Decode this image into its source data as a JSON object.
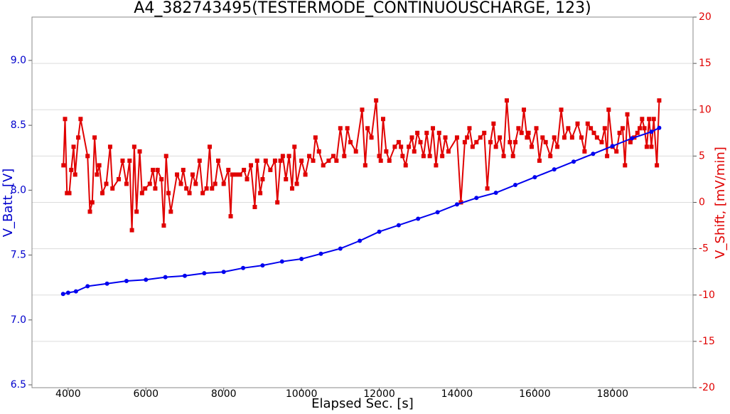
{
  "chart_data": {
    "type": "line",
    "title": "A4_382743495(TESTERMODE_CONTINUOUSCHARGE, 123)",
    "x_label": "Elapsed Sec. [s]",
    "y_label": "V_Batt. [V]",
    "y2_label": "V_Shift, [mV/min]",
    "xlim": [
      3070,
      20070
    ],
    "xticks": [
      4000,
      6000,
      8000,
      10000,
      12000,
      14000,
      16000,
      18000
    ],
    "ylim": [
      6.478,
      9.334
    ],
    "yticks": [
      6.5,
      {
        "value": 7,
        "label": "7.0"
      },
      7.5,
      {
        "value": 8,
        "label": "8.0"
      },
      8.5,
      {
        "value": 9,
        "label": "9.0"
      }
    ],
    "y_color": "#0000cc",
    "y2lim": [
      -20,
      20
    ],
    "y2ticks": [
      -20,
      -15,
      -10,
      -5,
      0,
      5,
      10,
      15,
      20
    ],
    "y2_color": "#e00000",
    "grid": "y2",
    "series": [
      {
        "name": "V_Batt",
        "color": "#0000ee",
        "marker": "circle",
        "x": [
          3870,
          4000,
          4200,
          4500,
          5000,
          5500,
          6000,
          6500,
          7000,
          7500,
          8000,
          8500,
          9000,
          9500,
          10000,
          10500,
          11000,
          11500,
          12000,
          12500,
          13000,
          13500,
          14000,
          14500,
          15000,
          15500,
          16000,
          16500,
          17000,
          17500,
          18000,
          18500,
          19000,
          19200
        ],
        "values": [
          7.2,
          7.21,
          7.22,
          7.26,
          7.28,
          7.3,
          7.31,
          7.33,
          7.34,
          7.36,
          7.37,
          7.4,
          7.42,
          7.45,
          7.47,
          7.51,
          7.55,
          7.61,
          7.68,
          7.73,
          7.78,
          7.83,
          7.89,
          7.94,
          7.98,
          8.04,
          8.1,
          8.16,
          8.22,
          8.28,
          8.34,
          8.4,
          8.45,
          8.48
        ]
      },
      {
        "name": "V_Shift",
        "color": "#e00000",
        "marker": "square",
        "axis": "y2",
        "x": [
          3880,
          3920,
          3970,
          4030,
          4080,
          4140,
          4180,
          4260,
          4320,
          4500,
          4560,
          4620,
          4680,
          4740,
          4800,
          4880,
          4980,
          5080,
          5140,
          5300,
          5400,
          5500,
          5580,
          5640,
          5700,
          5760,
          5840,
          5900,
          5980,
          6100,
          6180,
          6240,
          6300,
          6400,
          6460,
          6520,
          6580,
          6640,
          6800,
          6900,
          6960,
          7040,
          7120,
          7200,
          7280,
          7380,
          7460,
          7560,
          7640,
          7700,
          7780,
          7860,
          8000,
          8120,
          8180,
          8220,
          8320,
          8420,
          8520,
          8600,
          8700,
          8800,
          8860,
          8940,
          9000,
          9080,
          9200,
          9320,
          9380,
          9460,
          9520,
          9600,
          9680,
          9760,
          9820,
          9880,
          10000,
          10100,
          10200,
          10300,
          10360,
          10450,
          10560,
          10700,
          10820,
          10900,
          11000,
          11100,
          11180,
          11260,
          11400,
          11560,
          11640,
          11700,
          11800,
          11920,
          12000,
          12040,
          12100,
          12180,
          12260,
          12400,
          12500,
          12560,
          12600,
          12680,
          12760,
          12840,
          12900,
          12980,
          13060,
          13140,
          13220,
          13300,
          13380,
          13460,
          13540,
          13620,
          13700,
          13780,
          14000,
          14100,
          14200,
          14260,
          14320,
          14400,
          14500,
          14600,
          14700,
          14780,
          14860,
          14940,
          15000,
          15100,
          15200,
          15280,
          15360,
          15440,
          15500,
          15580,
          15660,
          15720,
          15800,
          15840,
          15920,
          16040,
          16120,
          16200,
          16280,
          16400,
          16500,
          16580,
          16680,
          16760,
          16860,
          16960,
          17100,
          17200,
          17280,
          17360,
          17440,
          17520,
          17600,
          17720,
          17800,
          17860,
          17900,
          18000,
          18100,
          18180,
          18260,
          18320,
          18380,
          18460,
          18560,
          18640,
          18700,
          18760,
          18820,
          18880,
          18940,
          19000,
          19060,
          19140,
          19200
        ],
        "values": [
          4,
          9,
          1,
          1,
          3.5,
          6,
          3,
          7,
          9,
          5,
          -1,
          0,
          7,
          3,
          4,
          1,
          2,
          6,
          1.5,
          2.5,
          4.5,
          2,
          4.5,
          -3,
          6,
          -1,
          5.5,
          1,
          1.5,
          2,
          3.5,
          1.5,
          3.5,
          2.5,
          -2.5,
          5,
          1,
          -1,
          3,
          2,
          3.5,
          1.5,
          1,
          3,
          2,
          4.5,
          1,
          1.5,
          6,
          1.5,
          2,
          4.5,
          2,
          3.5,
          -1.5,
          3,
          3,
          3,
          3.5,
          2.5,
          4,
          -0.5,
          4.5,
          1,
          2.5,
          4.5,
          3.5,
          4.5,
          0,
          4.5,
          5,
          2.5,
          5,
          1.5,
          6,
          2,
          4.5,
          3,
          5,
          4.5,
          7,
          5.5,
          4,
          4.5,
          5,
          4.5,
          8,
          5,
          8,
          6.5,
          5.5,
          10,
          4,
          8,
          7,
          11,
          5,
          4.5,
          9,
          5.5,
          4.5,
          6,
          6.5,
          6,
          5,
          4,
          6,
          7,
          5.5,
          7.5,
          6.5,
          5,
          7.5,
          5,
          8,
          4,
          7.5,
          5,
          7,
          5.5,
          7,
          0,
          6.5,
          7,
          8,
          6,
          6.5,
          7,
          7.5,
          1.5,
          6.5,
          8.5,
          6,
          7,
          5,
          11,
          6.5,
          5,
          6.5,
          8,
          7.5,
          10,
          7,
          7.5,
          6,
          8,
          4.5,
          7,
          6.5,
          5,
          7,
          6,
          10,
          7,
          8,
          7,
          8.5,
          7,
          5.5,
          8.5,
          8,
          7.5,
          7,
          6.5,
          8,
          5,
          10,
          6,
          5.5,
          7.5,
          8,
          4,
          9.5,
          6.5,
          7,
          7.5,
          8,
          9,
          8,
          6,
          9,
          6,
          9,
          4,
          11
        ]
      }
    ]
  }
}
